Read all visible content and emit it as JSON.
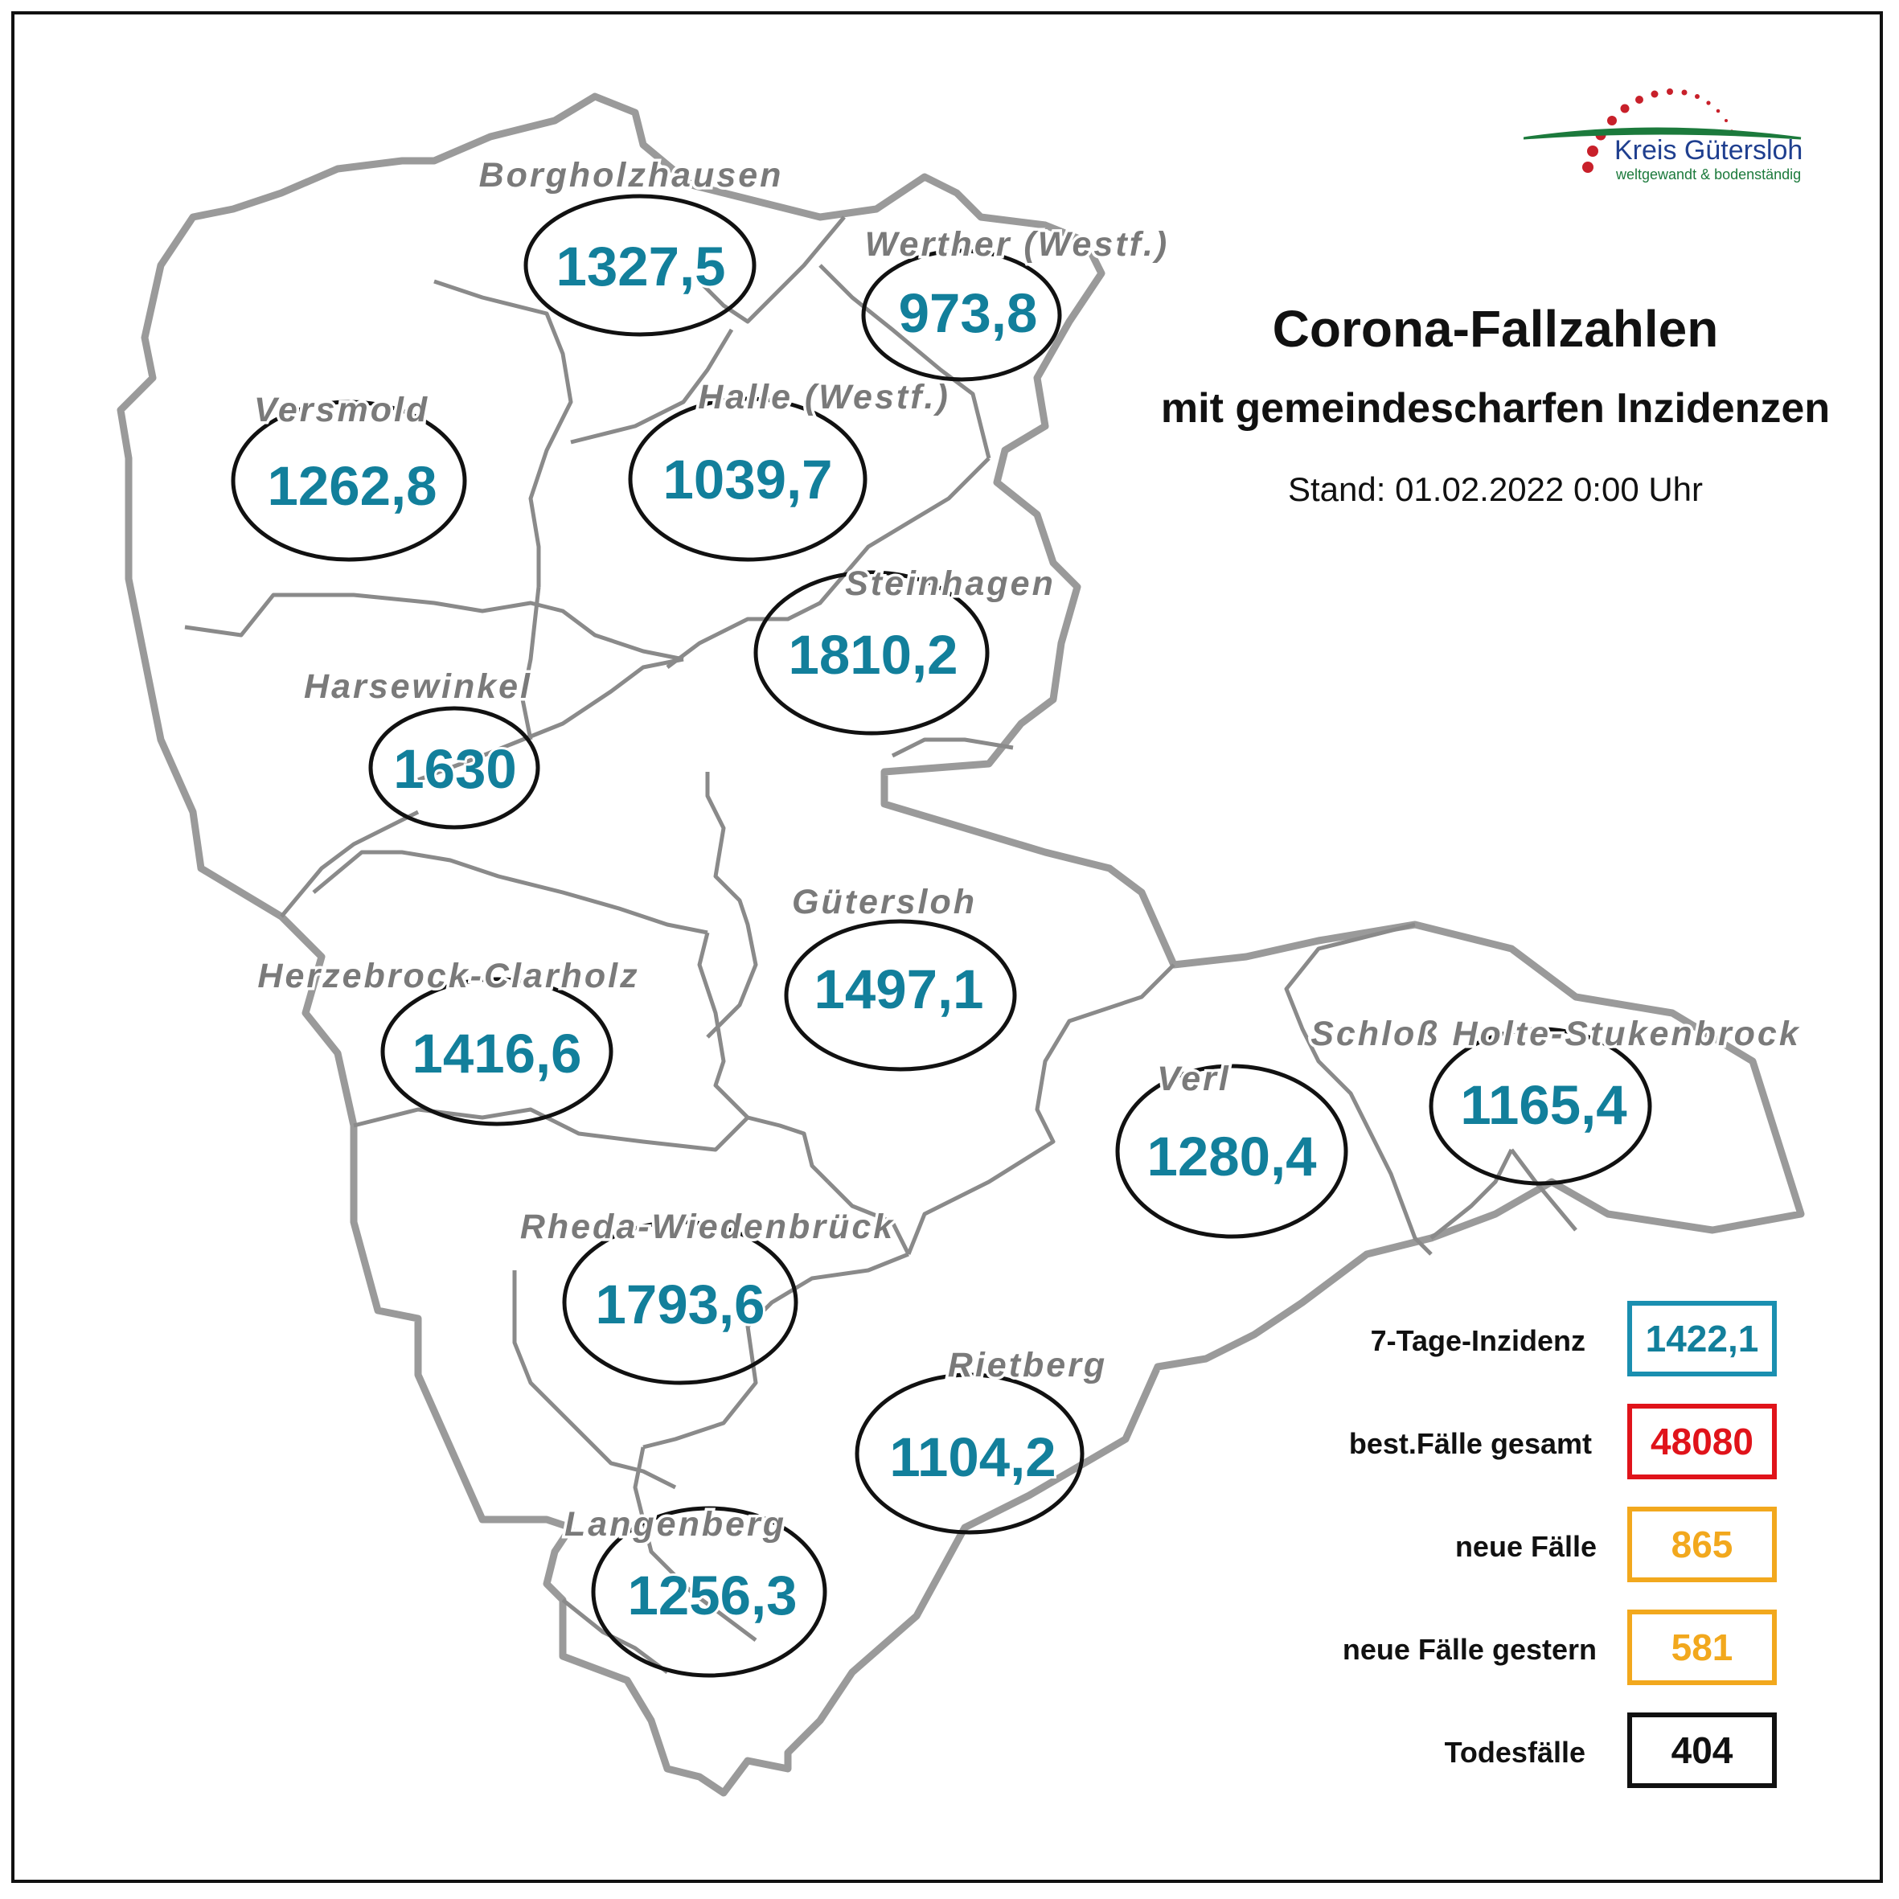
{
  "title": "Corona-Fallzahlen",
  "subtitle": "mit gemeindescharfen Inzidenzen",
  "stand": "Stand: 01.02.2022 0:00 Uhr",
  "logo": {
    "name": "Kreis Gütersloh",
    "tagline": "weltgewandt & bodenständig",
    "colors": {
      "dots": "#c8202a",
      "swoosh": "#1c7a3c",
      "text": "#1f3f8f"
    }
  },
  "colors": {
    "value_text": "#127f9b",
    "name_text": "#7a7a7a",
    "boundary": "#8a8a8a"
  },
  "municipalities": [
    {
      "name": "Borgholzhausen",
      "value": "1327,5"
    },
    {
      "name": "Werther (Westf.)",
      "value": "973,8"
    },
    {
      "name": "Versmold",
      "value": "1262,8"
    },
    {
      "name": "Halle (Westf.)",
      "value": "1039,7"
    },
    {
      "name": "Steinhagen",
      "value": "1810,2"
    },
    {
      "name": "Harsewinkel",
      "value": "1630"
    },
    {
      "name": "Gütersloh",
      "value": "1497,1"
    },
    {
      "name": "Herzebrock-Clarholz",
      "value": "1416,6"
    },
    {
      "name": "Verl",
      "value": "1280,4"
    },
    {
      "name": "Schloß Holte-Stukenbrock",
      "value": "1165,4"
    },
    {
      "name": "Rheda-Wiedenbrück",
      "value": "1793,6"
    },
    {
      "name": "Rietberg",
      "value": "1104,2"
    },
    {
      "name": "Langenberg",
      "value": "1256,3"
    }
  ],
  "legend": [
    {
      "label": "7-Tage-Inzidenz",
      "value": "1422,1",
      "color": "#1a8fb0",
      "text_color": "#127f9b"
    },
    {
      "label": "best.Fälle gesamt",
      "value": "48080",
      "color": "#e0131a",
      "text_color": "#e0131a"
    },
    {
      "label": "neue Fälle",
      "value": "865",
      "color": "#f2a81d",
      "text_color": "#f2a81d"
    },
    {
      "label": "neue Fälle gestern",
      "value": "581",
      "color": "#f2a81d",
      "text_color": "#f2a81d"
    },
    {
      "label": "Todesfälle",
      "value": "404",
      "color": "#111111",
      "text_color": "#111111"
    }
  ]
}
